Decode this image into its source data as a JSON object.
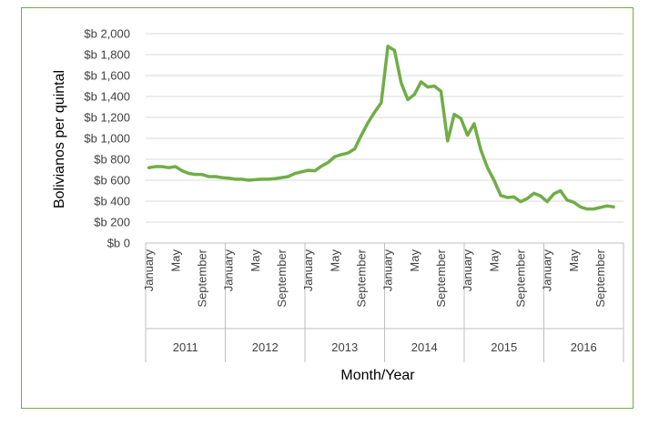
{
  "chart_data": {
    "type": "line",
    "title": "",
    "xlabel": "Month/Year",
    "ylabel": "Bolivianos per quintal",
    "ylim": [
      0,
      2000
    ],
    "yticks": [
      "$b 0",
      "$b 200",
      "$b 400",
      "$b 600",
      "$b 800",
      "$b 1,000",
      "$b 1,200",
      "$b 1,400",
      "$b 1,600",
      "$b 1,800",
      "$b 2,000"
    ],
    "grid": true,
    "legend": "none",
    "line_color": "#70ad47",
    "years": [
      "2011",
      "2012",
      "2013",
      "2014",
      "2015",
      "2016"
    ],
    "month_tick_labels": [
      "January",
      "May",
      "September"
    ],
    "series": [
      {
        "values": [
          720,
          730,
          730,
          720,
          730,
          690,
          665,
          655,
          655,
          635,
          635,
          625,
          620,
          610,
          610,
          600,
          605,
          610,
          610,
          615,
          625,
          635,
          665,
          680,
          695,
          690,
          735,
          770,
          825,
          845,
          860,
          900,
          1030,
          1150,
          1250,
          1340,
          1880,
          1840,
          1530,
          1370,
          1420,
          1540,
          1490,
          1500,
          1450,
          975,
          1230,
          1190,
          1030,
          1140,
          890,
          720,
          600,
          455,
          435,
          440,
          395,
          425,
          475,
          450,
          395,
          470,
          500,
          410,
          390,
          345,
          325,
          325,
          340,
          355,
          345
        ]
      }
    ]
  }
}
